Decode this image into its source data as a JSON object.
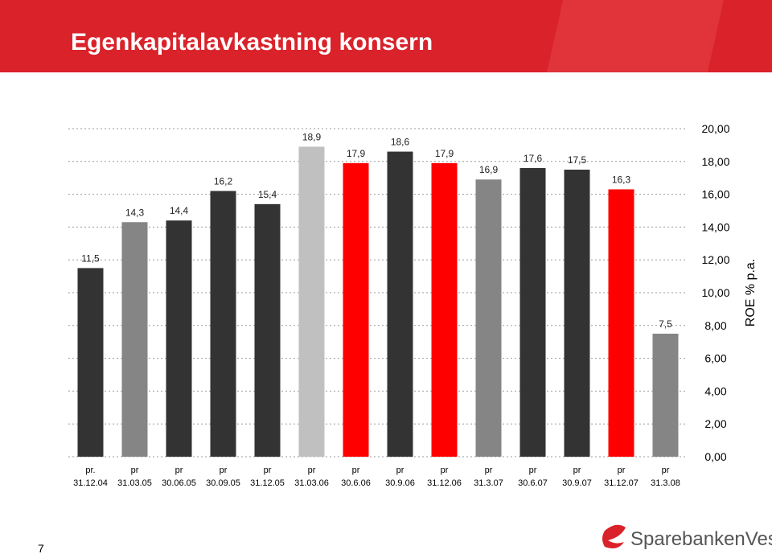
{
  "slide_number": "7",
  "logo": "SparebankenVest",
  "chart_data": {
    "type": "bar",
    "title": "Egenkapitalavkastning konsern",
    "y_axis_label": "ROE % p.a.",
    "categories": [
      "pr.\n31.12.04",
      "pr\n31.03.05",
      "pr\n30.06.05",
      "pr\n30.09.05",
      "pr\n31.12.05",
      "pr\n31.03.06",
      "pr\n30.6.06",
      "pr\n30.9.06",
      "pr\n31.12.06",
      "pr\n31.3.07",
      "pr\n30.6.07",
      "pr\n30.9.07",
      "pr\n31.12.07",
      "pr\n31.3.08"
    ],
    "values": [
      11.5,
      14.3,
      14.4,
      16.2,
      15.4,
      18.9,
      17.9,
      18.6,
      17.9,
      16.9,
      17.6,
      17.5,
      16.3,
      7.5
    ],
    "value_labels": [
      "11,5",
      "14,3",
      "14,4",
      "16,2",
      "15,4",
      "18,9",
      "17,9",
      "18,6",
      "17,9",
      "16,9",
      "17,6",
      "17,5",
      "16,3",
      "7,5"
    ],
    "colors": [
      "#333333",
      "#858585",
      "#333333",
      "#333333",
      "#333333",
      "#c0c0c0",
      "#ff0000",
      "#333333",
      "#ff0000",
      "#858585",
      "#333333",
      "#333333",
      "#ff0000",
      "#858585"
    ],
    "ylim": [
      0,
      20
    ],
    "yticks": [
      {
        "value": 0,
        "label": "0,00"
      },
      {
        "value": 2,
        "label": "2,00"
      },
      {
        "value": 4,
        "label": "4,00"
      },
      {
        "value": 6,
        "label": "6,00"
      },
      {
        "value": 8,
        "label": "8,00"
      },
      {
        "value": 10,
        "label": "10,00"
      },
      {
        "value": 12,
        "label": "12,00"
      },
      {
        "value": 14,
        "label": "14,00"
      },
      {
        "value": 16,
        "label": "16,00"
      },
      {
        "value": 18,
        "label": "18,00"
      },
      {
        "value": 20,
        "label": "20,00"
      }
    ],
    "grid": true
  }
}
